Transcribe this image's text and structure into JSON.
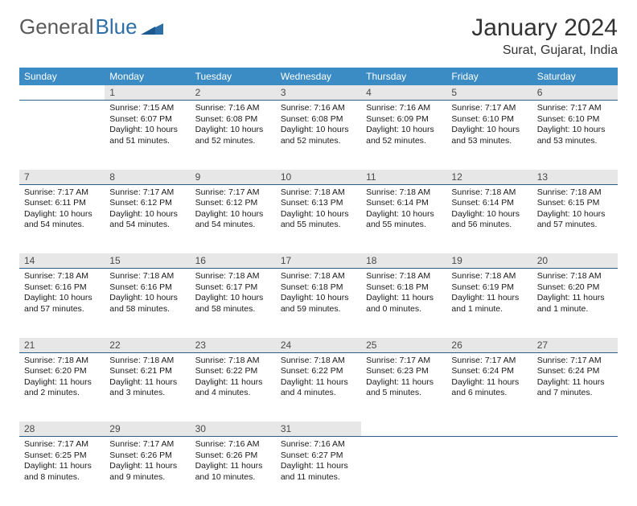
{
  "logo": {
    "part1": "General",
    "part2": "Blue"
  },
  "title": "January 2024",
  "location": "Surat, Gujarat, India",
  "colors": {
    "header_bg": "#3b8bc4",
    "header_text": "#ffffff",
    "daynum_bg": "#e7e7e7",
    "border": "#2e5d87",
    "logo_gray": "#5a5a5a",
    "logo_blue": "#2f6fa8"
  },
  "dayNames": [
    "Sunday",
    "Monday",
    "Tuesday",
    "Wednesday",
    "Thursday",
    "Friday",
    "Saturday"
  ],
  "weeks": [
    [
      {
        "n": "",
        "lines": []
      },
      {
        "n": "1",
        "lines": [
          "Sunrise: 7:15 AM",
          "Sunset: 6:07 PM",
          "Daylight: 10 hours",
          "and 51 minutes."
        ]
      },
      {
        "n": "2",
        "lines": [
          "Sunrise: 7:16 AM",
          "Sunset: 6:08 PM",
          "Daylight: 10 hours",
          "and 52 minutes."
        ]
      },
      {
        "n": "3",
        "lines": [
          "Sunrise: 7:16 AM",
          "Sunset: 6:08 PM",
          "Daylight: 10 hours",
          "and 52 minutes."
        ]
      },
      {
        "n": "4",
        "lines": [
          "Sunrise: 7:16 AM",
          "Sunset: 6:09 PM",
          "Daylight: 10 hours",
          "and 52 minutes."
        ]
      },
      {
        "n": "5",
        "lines": [
          "Sunrise: 7:17 AM",
          "Sunset: 6:10 PM",
          "Daylight: 10 hours",
          "and 53 minutes."
        ]
      },
      {
        "n": "6",
        "lines": [
          "Sunrise: 7:17 AM",
          "Sunset: 6:10 PM",
          "Daylight: 10 hours",
          "and 53 minutes."
        ]
      }
    ],
    [
      {
        "n": "7",
        "lines": [
          "Sunrise: 7:17 AM",
          "Sunset: 6:11 PM",
          "Daylight: 10 hours",
          "and 54 minutes."
        ]
      },
      {
        "n": "8",
        "lines": [
          "Sunrise: 7:17 AM",
          "Sunset: 6:12 PM",
          "Daylight: 10 hours",
          "and 54 minutes."
        ]
      },
      {
        "n": "9",
        "lines": [
          "Sunrise: 7:17 AM",
          "Sunset: 6:12 PM",
          "Daylight: 10 hours",
          "and 54 minutes."
        ]
      },
      {
        "n": "10",
        "lines": [
          "Sunrise: 7:18 AM",
          "Sunset: 6:13 PM",
          "Daylight: 10 hours",
          "and 55 minutes."
        ]
      },
      {
        "n": "11",
        "lines": [
          "Sunrise: 7:18 AM",
          "Sunset: 6:14 PM",
          "Daylight: 10 hours",
          "and 55 minutes."
        ]
      },
      {
        "n": "12",
        "lines": [
          "Sunrise: 7:18 AM",
          "Sunset: 6:14 PM",
          "Daylight: 10 hours",
          "and 56 minutes."
        ]
      },
      {
        "n": "13",
        "lines": [
          "Sunrise: 7:18 AM",
          "Sunset: 6:15 PM",
          "Daylight: 10 hours",
          "and 57 minutes."
        ]
      }
    ],
    [
      {
        "n": "14",
        "lines": [
          "Sunrise: 7:18 AM",
          "Sunset: 6:16 PM",
          "Daylight: 10 hours",
          "and 57 minutes."
        ]
      },
      {
        "n": "15",
        "lines": [
          "Sunrise: 7:18 AM",
          "Sunset: 6:16 PM",
          "Daylight: 10 hours",
          "and 58 minutes."
        ]
      },
      {
        "n": "16",
        "lines": [
          "Sunrise: 7:18 AM",
          "Sunset: 6:17 PM",
          "Daylight: 10 hours",
          "and 58 minutes."
        ]
      },
      {
        "n": "17",
        "lines": [
          "Sunrise: 7:18 AM",
          "Sunset: 6:18 PM",
          "Daylight: 10 hours",
          "and 59 minutes."
        ]
      },
      {
        "n": "18",
        "lines": [
          "Sunrise: 7:18 AM",
          "Sunset: 6:18 PM",
          "Daylight: 11 hours",
          "and 0 minutes."
        ]
      },
      {
        "n": "19",
        "lines": [
          "Sunrise: 7:18 AM",
          "Sunset: 6:19 PM",
          "Daylight: 11 hours",
          "and 1 minute."
        ]
      },
      {
        "n": "20",
        "lines": [
          "Sunrise: 7:18 AM",
          "Sunset: 6:20 PM",
          "Daylight: 11 hours",
          "and 1 minute."
        ]
      }
    ],
    [
      {
        "n": "21",
        "lines": [
          "Sunrise: 7:18 AM",
          "Sunset: 6:20 PM",
          "Daylight: 11 hours",
          "and 2 minutes."
        ]
      },
      {
        "n": "22",
        "lines": [
          "Sunrise: 7:18 AM",
          "Sunset: 6:21 PM",
          "Daylight: 11 hours",
          "and 3 minutes."
        ]
      },
      {
        "n": "23",
        "lines": [
          "Sunrise: 7:18 AM",
          "Sunset: 6:22 PM",
          "Daylight: 11 hours",
          "and 4 minutes."
        ]
      },
      {
        "n": "24",
        "lines": [
          "Sunrise: 7:18 AM",
          "Sunset: 6:22 PM",
          "Daylight: 11 hours",
          "and 4 minutes."
        ]
      },
      {
        "n": "25",
        "lines": [
          "Sunrise: 7:17 AM",
          "Sunset: 6:23 PM",
          "Daylight: 11 hours",
          "and 5 minutes."
        ]
      },
      {
        "n": "26",
        "lines": [
          "Sunrise: 7:17 AM",
          "Sunset: 6:24 PM",
          "Daylight: 11 hours",
          "and 6 minutes."
        ]
      },
      {
        "n": "27",
        "lines": [
          "Sunrise: 7:17 AM",
          "Sunset: 6:24 PM",
          "Daylight: 11 hours",
          "and 7 minutes."
        ]
      }
    ],
    [
      {
        "n": "28",
        "lines": [
          "Sunrise: 7:17 AM",
          "Sunset: 6:25 PM",
          "Daylight: 11 hours",
          "and 8 minutes."
        ]
      },
      {
        "n": "29",
        "lines": [
          "Sunrise: 7:17 AM",
          "Sunset: 6:26 PM",
          "Daylight: 11 hours",
          "and 9 minutes."
        ]
      },
      {
        "n": "30",
        "lines": [
          "Sunrise: 7:16 AM",
          "Sunset: 6:26 PM",
          "Daylight: 11 hours",
          "and 10 minutes."
        ]
      },
      {
        "n": "31",
        "lines": [
          "Sunrise: 7:16 AM",
          "Sunset: 6:27 PM",
          "Daylight: 11 hours",
          "and 11 minutes."
        ]
      },
      {
        "n": "",
        "lines": []
      },
      {
        "n": "",
        "lines": []
      },
      {
        "n": "",
        "lines": []
      }
    ]
  ]
}
